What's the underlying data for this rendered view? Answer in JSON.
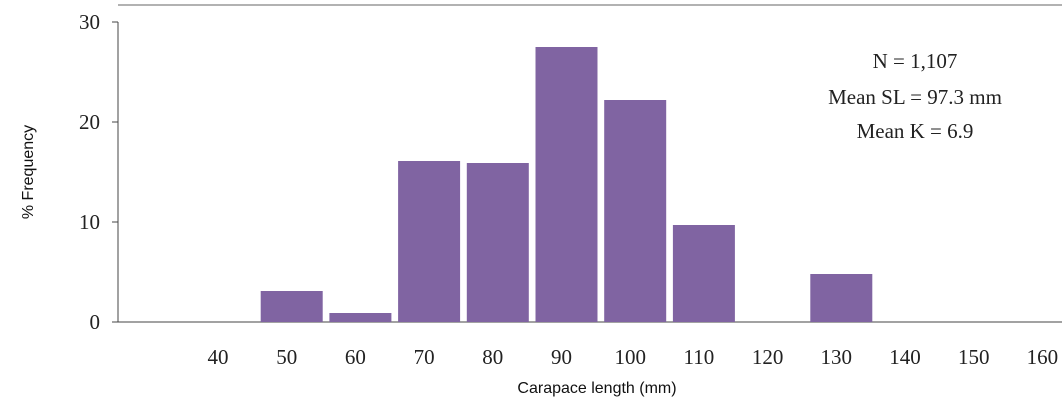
{
  "chart_data": {
    "type": "bar",
    "categories": [
      "40",
      "50",
      "60",
      "70",
      "80",
      "90",
      "100",
      "110",
      "120",
      "130",
      "140",
      "150",
      "160"
    ],
    "values": [
      0,
      3.1,
      0.9,
      16.1,
      15.9,
      27.5,
      22.2,
      9.7,
      0,
      4.8,
      0,
      0,
      0
    ],
    "ylabel": "% Frequency",
    "xlabel": "Carapace length (mm)",
    "ylim": [
      0,
      30
    ],
    "yticks": [
      "0",
      "10",
      "20",
      "30"
    ],
    "bar_color": "#8064a2",
    "grid": false,
    "annotations": [
      "N = 1,107",
      "Mean SL = 97.3 mm",
      "Mean K = 6.9"
    ]
  }
}
